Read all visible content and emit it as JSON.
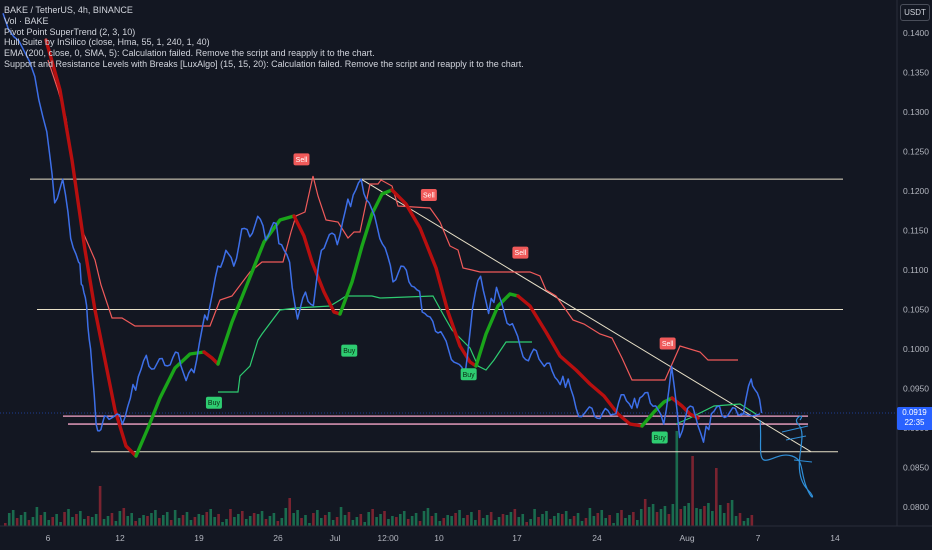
{
  "header": {
    "symbol_line": "BAKE / TetherUS, 4h, BINANCE",
    "indicators": [
      "Vol · BAKE",
      "Pivot Point SuperTrend (2, 3, 10)",
      "Hull Suite by InSilico (close, Hma, 55, 1, 240, 1, 40)",
      "EMA (200, close, 0, SMA, 5): Calculation failed. Remove the script and reapply it to the chart.",
      " Support and Resistance Levels with Breaks [LuxAlgo] (15, 15, 20): Calculation failed. Remove the script and reapply it to the chart."
    ]
  },
  "currency_button": "USDT",
  "last_price": {
    "value": "0.0919",
    "countdown": "22:35"
  },
  "colors": {
    "background": "#131722",
    "price_line": "#3d6fe8",
    "supertrend_down": "#f05a5a",
    "supertrend_up": "#2ecc71",
    "hull_up": "#1aa51a",
    "hull_down": "#b80f0f",
    "levels": "#e8e0c8",
    "pink_levels": "#f4a6c8",
    "vol_up": "#1a6b4e",
    "vol_down": "#7a2330",
    "drawing": "#2f8fd8",
    "price_tag": "#2962ff"
  },
  "chart_data": {
    "type": "line",
    "title": "BAKE / TetherUS, 4h, BINANCE",
    "x_ticks": [
      "6",
      "12",
      "19",
      "26",
      "Jul",
      "12:00",
      "10",
      "17",
      "24",
      "Aug",
      "7",
      "14"
    ],
    "y_ticks": [
      "0.1400",
      "0.1350",
      "0.1300",
      "0.1250",
      "0.1200",
      "0.1150",
      "0.1100",
      "0.1050",
      "0.1000",
      "0.0950",
      "0.0900",
      "0.0850",
      "0.0800"
    ],
    "ylim": [
      0.0785,
      0.1425
    ],
    "y_scale": "linear",
    "grid": false,
    "x_range": [
      0,
      106
    ],
    "series": [
      {
        "kind": "price",
        "x": [
          0,
          2,
          4,
          5.5,
          6.5,
          7.5,
          8.5,
          9.5,
          10,
          10.5,
          11,
          11.7,
          12.3,
          13,
          14,
          15,
          16,
          17,
          18,
          19,
          20,
          21,
          22,
          23,
          24,
          25,
          26,
          27,
          28,
          29,
          30,
          31,
          32,
          33,
          34,
          35,
          36,
          37,
          38,
          39,
          40,
          41,
          42,
          43,
          44,
          45,
          46,
          47,
          48,
          49,
          50,
          51,
          52,
          53,
          54,
          55,
          56,
          57,
          58,
          59,
          60,
          61,
          62,
          63,
          64,
          65,
          66,
          67,
          68,
          69,
          70,
          71,
          72,
          73,
          74,
          75,
          76,
          77,
          78,
          79,
          80,
          81,
          82,
          83,
          84,
          85,
          86,
          87,
          88,
          89,
          90,
          91,
          92,
          93,
          94,
          94.5,
          95.3
        ],
        "y": [
          0.1425,
          0.139,
          0.1345,
          0.1275,
          0.1185,
          0.1215,
          0.114,
          0.111,
          0.108,
          0.1055,
          0.1,
          0.0905,
          0.0898,
          0.0915,
          0.0915,
          0.0905,
          0.0938,
          0.0965,
          0.0992,
          0.0975,
          0.0988,
          0.098,
          0.0995,
          0.096,
          0.097,
          0.1025,
          0.1055,
          0.1105,
          0.1125,
          0.1105,
          0.1152,
          0.1142,
          0.1168,
          0.1138,
          0.116,
          0.1132,
          0.111,
          0.1038,
          0.1072,
          0.1055,
          0.1125,
          0.1145,
          0.1132,
          0.1175,
          0.1195,
          0.1215,
          0.1185,
          0.1155,
          0.1128,
          0.1085,
          0.1105,
          0.1085,
          0.1075,
          0.1045,
          0.1035,
          0.1022,
          0.0998,
          0.0982,
          0.0965,
          0.1052,
          0.1092,
          0.1045,
          0.1078,
          0.1045,
          0.1032,
          0.1002,
          0.0985,
          0.0998,
          0.0978,
          0.0972,
          0.0955,
          0.0962,
          0.0925,
          0.0918,
          0.0925,
          0.0912,
          0.0922,
          0.0918,
          0.0942,
          0.0925,
          0.0938,
          0.0945,
          0.0928,
          0.0905,
          0.0978,
          0.0888,
          0.0925,
          0.0915,
          0.0882,
          0.0918,
          0.0928,
          0.0915,
          0.0925,
          0.0918,
          0.0962,
          0.0948,
          0.0919
        ]
      },
      {
        "kind": "supertrend_down",
        "x": [
          12,
          13,
          14,
          15,
          16,
          17,
          18,
          19,
          20,
          21,
          22,
          23,
          24,
          25,
          26,
          27,
          28,
          29,
          30,
          31,
          32,
          33,
          34,
          35,
          36,
          37,
          38,
          39,
          40,
          41,
          42,
          43,
          44,
          45,
          46,
          47,
          48,
          49,
          50,
          51,
          52,
          53,
          54,
          55,
          56,
          57,
          58,
          59,
          60,
          61,
          62,
          63,
          64,
          65,
          66,
          67,
          68,
          69,
          70,
          71,
          72,
          73,
          74,
          75,
          76,
          77,
          78,
          79,
          80,
          81,
          82,
          83,
          84,
          85,
          86,
          87,
          88,
          89
        ],
        "y": [
          0.1048,
          0.1045,
          0.1043,
          0.104,
          0.1039,
          0.1038,
          0.1037,
          0.1036,
          0.1036,
          0.1035,
          0.1035,
          0.1035,
          0.1034,
          0.1034,
          0.1034,
          0.1034,
          0.1034,
          0.1034,
          0.1034,
          0.1034,
          0.1034,
          0.1034,
          0.1034,
          0.1034,
          0.1034,
          0.1034,
          0.1034,
          0.1034,
          0.1034,
          0.1034,
          0.1034,
          0.1034,
          0.1034,
          0.1034,
          0.1034,
          0.1034,
          0.1034,
          0.1034,
          0.1034,
          0.1034,
          0.1034,
          0.1034,
          0.1034,
          0.1034,
          0.1034,
          0.1034,
          0.1034,
          0.1034,
          0.1034,
          0.1034,
          0.1034,
          0.1034,
          0.1034,
          0.1034,
          0.1034,
          0.1034,
          0.1034,
          0.1034,
          0.1034,
          0.1034,
          0.1034,
          0.1034,
          0.1034,
          0.1034,
          0.1034,
          0.1034,
          0.1034,
          0.1034,
          0.1034,
          0.1034,
          0.1034,
          0.1034,
          0.1034,
          0.1034,
          0.1034,
          0.1034,
          0.1034,
          0.1034
        ]
      }
    ],
    "horizontal_levels": [
      0.1215,
      0.105,
      0.0915,
      0.0905,
      0.087
    ],
    "trendline": {
      "from": [
        45,
        0.1215
      ],
      "to": [
        101.5,
        0.087
      ]
    },
    "signals": [
      {
        "label": "Sell",
        "x": 37.5,
        "y": 0.124
      },
      {
        "label": "Sell",
        "x": 53.5,
        "y": 0.1195
      },
      {
        "label": "Sell",
        "x": 65.0,
        "y": 0.1122
      },
      {
        "label": "Sell",
        "x": 83.5,
        "y": 0.1007
      },
      {
        "label": "Buy",
        "x": 26.5,
        "y": 0.0932
      },
      {
        "label": "Buy",
        "x": 43.5,
        "y": 0.0998
      },
      {
        "label": "Buy",
        "x": 58.5,
        "y": 0.0968
      },
      {
        "label": "Buy",
        "x": 82.5,
        "y": 0.0888
      }
    ]
  }
}
